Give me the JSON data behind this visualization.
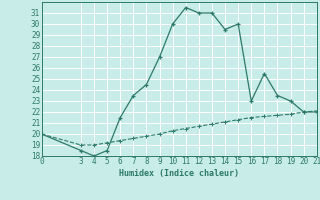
{
  "xlabel": "Humidex (Indice chaleur)",
  "bg_color": "#c8ece8",
  "grid_color": "#ffffff",
  "line_color": "#2d7a6a",
  "curve1_x": [
    0,
    3,
    4,
    5,
    6,
    7,
    8,
    9,
    10,
    11,
    12,
    13,
    14,
    15,
    16,
    17,
    18,
    19,
    20,
    21
  ],
  "curve1_y": [
    20,
    18.5,
    18,
    18.5,
    21.5,
    23.5,
    24.5,
    27,
    30,
    31.5,
    31,
    31,
    29.5,
    30,
    23,
    25.5,
    23.5,
    23,
    22,
    22
  ],
  "curve2_x": [
    0,
    3,
    4,
    5,
    6,
    7,
    8,
    9,
    10,
    11,
    12,
    13,
    14,
    15,
    16,
    17,
    18,
    19,
    20,
    21
  ],
  "curve2_y": [
    20,
    19,
    19,
    19.2,
    19.4,
    19.6,
    19.8,
    20.0,
    20.3,
    20.5,
    20.7,
    20.9,
    21.1,
    21.3,
    21.5,
    21.6,
    21.7,
    21.8,
    22.0,
    22.1
  ],
  "xlim": [
    0,
    21
  ],
  "ylim": [
    18,
    32
  ],
  "xticks": [
    0,
    3,
    4,
    5,
    6,
    7,
    8,
    9,
    10,
    11,
    12,
    13,
    14,
    15,
    16,
    17,
    18,
    19,
    20,
    21
  ],
  "yticks": [
    18,
    19,
    20,
    21,
    22,
    23,
    24,
    25,
    26,
    27,
    28,
    29,
    30,
    31
  ],
  "font_size": 5.5
}
